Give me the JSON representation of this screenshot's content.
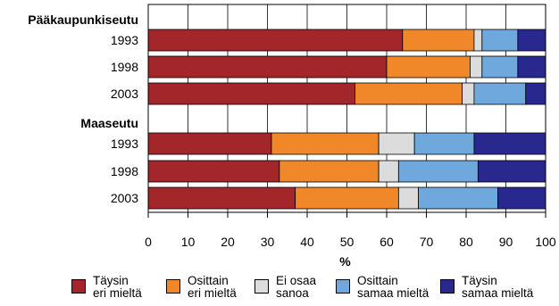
{
  "chart_data": {
    "type": "bar",
    "orientation": "horizontal",
    "stacked": true,
    "groups": [
      {
        "label": "Pääkaupunkiseutu",
        "rows": [
          {
            "label": "1993",
            "values": [
              64,
              18,
              2,
              9,
              7
            ]
          },
          {
            "label": "1998",
            "values": [
              60,
              21,
              3,
              9,
              7
            ]
          },
          {
            "label": "2003",
            "values": [
              52,
              27,
              3,
              13,
              5
            ]
          }
        ]
      },
      {
        "label": "Maaseutu",
        "rows": [
          {
            "label": "1993",
            "values": [
              31,
              27,
              9,
              15,
              18
            ]
          },
          {
            "label": "1998",
            "values": [
              33,
              25,
              5,
              20,
              17
            ]
          },
          {
            "label": "2003",
            "values": [
              37,
              26,
              5,
              20,
              12
            ]
          }
        ]
      }
    ],
    "series": [
      {
        "name": "Täysin\neri mieltä",
        "color": "#a3262a"
      },
      {
        "name": "Osittain\neri mieltä",
        "color": "#f0882a"
      },
      {
        "name": "Ei osaa\nsanoa",
        "color": "#dcdcdc"
      },
      {
        "name": "Osittain\nsamaa mieltä",
        "color": "#6fa8dc"
      },
      {
        "name": "Täysin\nsamaa mieltä",
        "color": "#28288f"
      }
    ],
    "xlabel": "%",
    "xlim": [
      0,
      100
    ],
    "xticks": [
      "0",
      "10",
      "20",
      "30",
      "40",
      "50",
      "60",
      "70",
      "80",
      "90",
      "100"
    ],
    "grid": true,
    "legend": "bottom"
  }
}
